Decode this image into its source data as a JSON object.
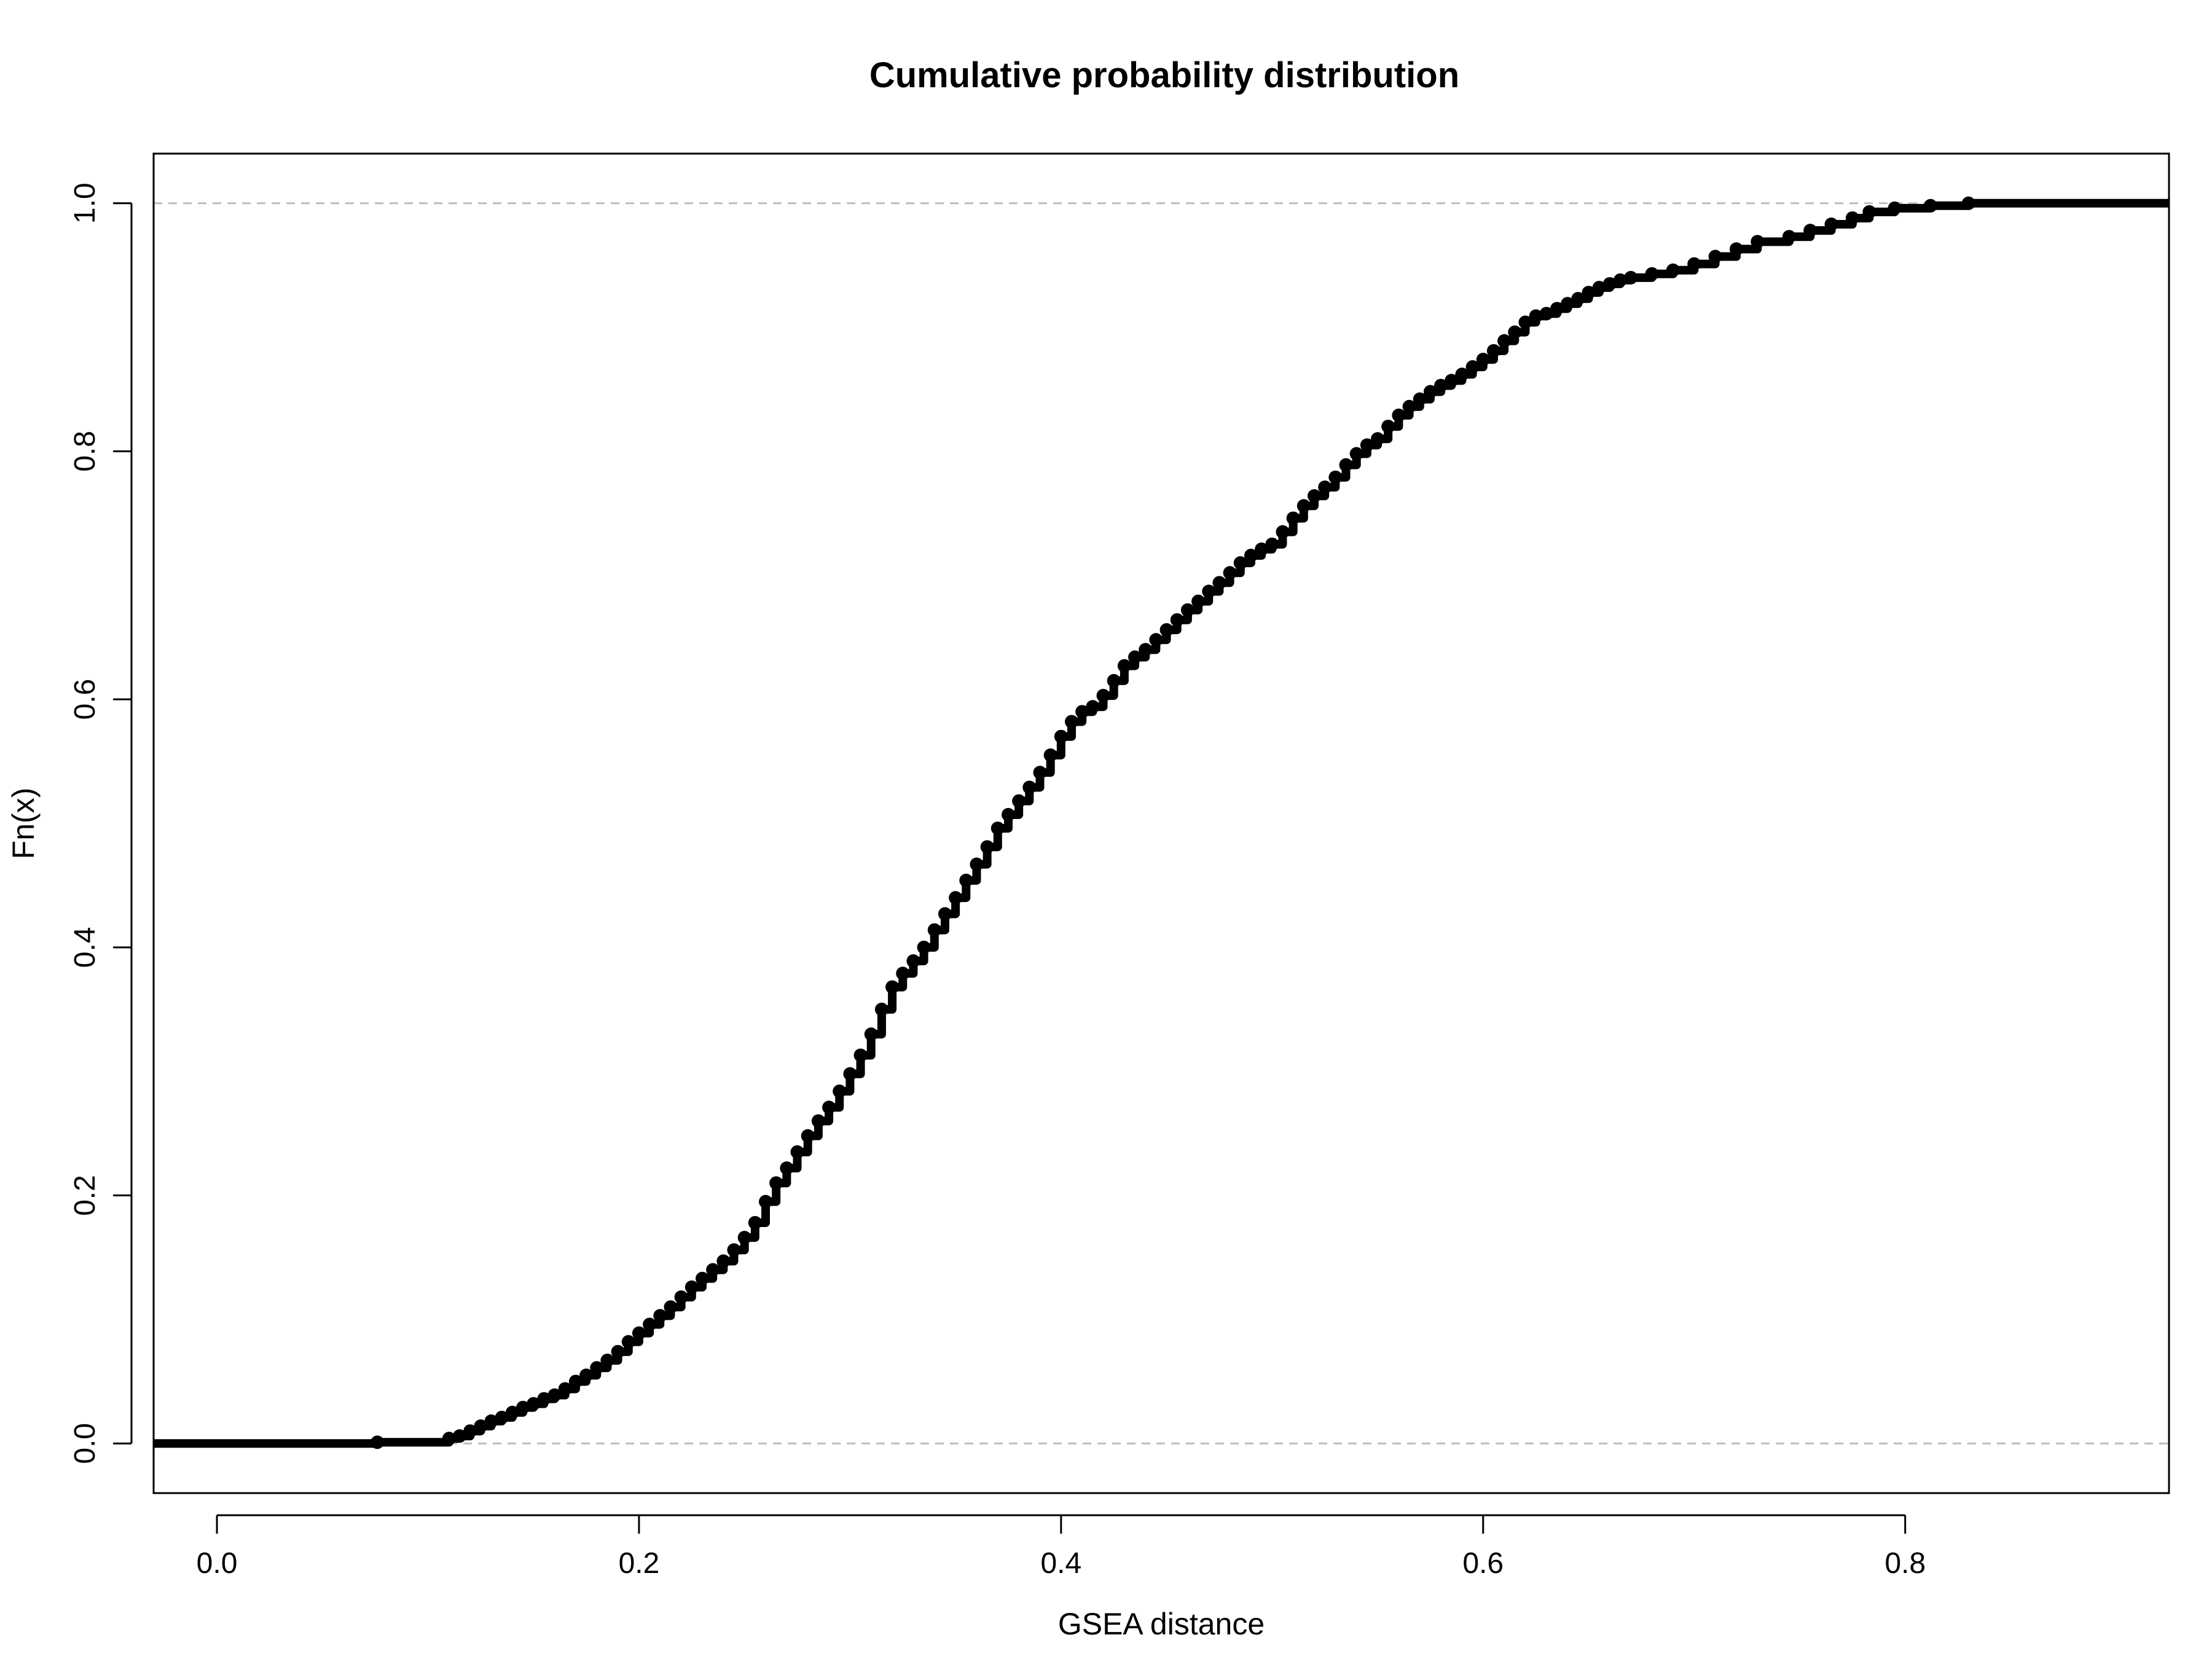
{
  "chart_data": {
    "type": "line",
    "title": "Cumulative probability distribution",
    "xlabel": "GSEA distance",
    "ylabel": "Fn(x)",
    "xlim": [
      -0.03,
      0.925
    ],
    "ylim": [
      -0.04,
      1.04
    ],
    "x_ticks": [
      "0.0",
      "0.2",
      "0.4",
      "0.6",
      "0.8"
    ],
    "y_ticks": [
      "0.0",
      "0.2",
      "0.4",
      "0.6",
      "0.8",
      "1.0"
    ],
    "reference_lines": [
      0.0,
      1.0
    ],
    "grid": false,
    "legend": "none",
    "colors": {
      "points": "#000000",
      "reference": "#bdbdbd",
      "axis": "#000000"
    },
    "series": [
      {
        "points": [
          [
            0.076,
            0.001
          ],
          [
            0.11,
            0.004
          ],
          [
            0.115,
            0.006
          ],
          [
            0.12,
            0.01
          ],
          [
            0.125,
            0.014
          ],
          [
            0.13,
            0.018
          ],
          [
            0.135,
            0.021
          ],
          [
            0.14,
            0.025
          ],
          [
            0.145,
            0.029
          ],
          [
            0.15,
            0.032
          ],
          [
            0.155,
            0.036
          ],
          [
            0.16,
            0.039
          ],
          [
            0.165,
            0.044
          ],
          [
            0.17,
            0.05
          ],
          [
            0.175,
            0.055
          ],
          [
            0.18,
            0.061
          ],
          [
            0.185,
            0.067
          ],
          [
            0.19,
            0.074
          ],
          [
            0.195,
            0.082
          ],
          [
            0.2,
            0.089
          ],
          [
            0.205,
            0.096
          ],
          [
            0.21,
            0.103
          ],
          [
            0.215,
            0.11
          ],
          [
            0.22,
            0.118
          ],
          [
            0.225,
            0.126
          ],
          [
            0.23,
            0.133
          ],
          [
            0.235,
            0.14
          ],
          [
            0.24,
            0.147
          ],
          [
            0.245,
            0.156
          ],
          [
            0.25,
            0.166
          ],
          [
            0.255,
            0.178
          ],
          [
            0.26,
            0.195
          ],
          [
            0.265,
            0.21
          ],
          [
            0.27,
            0.222
          ],
          [
            0.275,
            0.235
          ],
          [
            0.28,
            0.248
          ],
          [
            0.285,
            0.26
          ],
          [
            0.29,
            0.271
          ],
          [
            0.295,
            0.284
          ],
          [
            0.3,
            0.298
          ],
          [
            0.305,
            0.313
          ],
          [
            0.31,
            0.33
          ],
          [
            0.315,
            0.35
          ],
          [
            0.32,
            0.368
          ],
          [
            0.325,
            0.379
          ],
          [
            0.33,
            0.389
          ],
          [
            0.335,
            0.4
          ],
          [
            0.34,
            0.414
          ],
          [
            0.345,
            0.427
          ],
          [
            0.35,
            0.44
          ],
          [
            0.355,
            0.454
          ],
          [
            0.36,
            0.467
          ],
          [
            0.365,
            0.481
          ],
          [
            0.37,
            0.496
          ],
          [
            0.375,
            0.507
          ],
          [
            0.38,
            0.518
          ],
          [
            0.385,
            0.529
          ],
          [
            0.39,
            0.541
          ],
          [
            0.395,
            0.555
          ],
          [
            0.4,
            0.57
          ],
          [
            0.405,
            0.582
          ],
          [
            0.41,
            0.59
          ],
          [
            0.415,
            0.594
          ],
          [
            0.42,
            0.603
          ],
          [
            0.425,
            0.615
          ],
          [
            0.43,
            0.627
          ],
          [
            0.435,
            0.634
          ],
          [
            0.44,
            0.64
          ],
          [
            0.445,
            0.648
          ],
          [
            0.45,
            0.656
          ],
          [
            0.455,
            0.664
          ],
          [
            0.46,
            0.672
          ],
          [
            0.465,
            0.679
          ],
          [
            0.47,
            0.687
          ],
          [
            0.475,
            0.694
          ],
          [
            0.48,
            0.702
          ],
          [
            0.485,
            0.71
          ],
          [
            0.49,
            0.716
          ],
          [
            0.495,
            0.721
          ],
          [
            0.5,
            0.725
          ],
          [
            0.505,
            0.735
          ],
          [
            0.51,
            0.746
          ],
          [
            0.515,
            0.756
          ],
          [
            0.52,
            0.764
          ],
          [
            0.525,
            0.771
          ],
          [
            0.53,
            0.779
          ],
          [
            0.535,
            0.789
          ],
          [
            0.54,
            0.798
          ],
          [
            0.545,
            0.805
          ],
          [
            0.55,
            0.81
          ],
          [
            0.555,
            0.82
          ],
          [
            0.56,
            0.829
          ],
          [
            0.565,
            0.836
          ],
          [
            0.57,
            0.842
          ],
          [
            0.575,
            0.848
          ],
          [
            0.58,
            0.853
          ],
          [
            0.585,
            0.857
          ],
          [
            0.59,
            0.862
          ],
          [
            0.595,
            0.868
          ],
          [
            0.6,
            0.874
          ],
          [
            0.605,
            0.881
          ],
          [
            0.61,
            0.889
          ],
          [
            0.615,
            0.896
          ],
          [
            0.62,
            0.904
          ],
          [
            0.625,
            0.909
          ],
          [
            0.63,
            0.911
          ],
          [
            0.635,
            0.915
          ],
          [
            0.64,
            0.919
          ],
          [
            0.645,
            0.923
          ],
          [
            0.65,
            0.928
          ],
          [
            0.655,
            0.932
          ],
          [
            0.66,
            0.935
          ],
          [
            0.665,
            0.938
          ],
          [
            0.67,
            0.94
          ],
          [
            0.68,
            0.943
          ],
          [
            0.69,
            0.946
          ],
          [
            0.7,
            0.951
          ],
          [
            0.71,
            0.957
          ],
          [
            0.72,
            0.963
          ],
          [
            0.73,
            0.969
          ],
          [
            0.745,
            0.973
          ],
          [
            0.755,
            0.978
          ],
          [
            0.765,
            0.983
          ],
          [
            0.775,
            0.988
          ],
          [
            0.783,
            0.993
          ],
          [
            0.795,
            0.996
          ],
          [
            0.812,
            0.998
          ],
          [
            0.83,
            1.0
          ]
        ]
      }
    ]
  }
}
